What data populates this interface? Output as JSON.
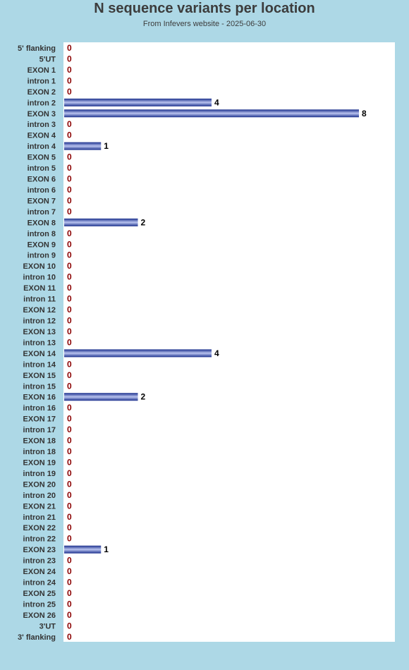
{
  "chart_data": {
    "type": "bar",
    "orientation": "horizontal",
    "title": "N sequence variants per location",
    "subtitle": "From Infevers website - 2025-06-30",
    "xlim": [
      0,
      8
    ],
    "grid": false,
    "colors": {
      "bar": "#1a2f8c",
      "bar_highlight": "#b9c3ef",
      "zero_label": "#8b0000",
      "value_label": "#000000"
    },
    "categories": [
      "5' flanking",
      "5'UT",
      "EXON 1",
      "intron 1",
      "EXON 2",
      "intron 2",
      "EXON 3",
      "intron 3",
      "EXON 4",
      "intron 4",
      "EXON 5",
      "intron 5",
      "EXON 6",
      "intron 6",
      "EXON 7",
      "intron 7",
      "EXON 8",
      "intron 8",
      "EXON 9",
      "intron 9",
      "EXON 10",
      "intron 10",
      "EXON 11",
      "intron 11",
      "EXON 12",
      "intron 12",
      "EXON 13",
      "intron 13",
      "EXON 14",
      "intron 14",
      "EXON 15",
      "intron 15",
      "EXON 16",
      "intron 16",
      "EXON 17",
      "intron 17",
      "EXON 18",
      "intron 18",
      "EXON 19",
      "intron 19",
      "EXON 20",
      "intron 20",
      "EXON 21",
      "intron 21",
      "EXON 22",
      "intron 22",
      "EXON 23",
      "intron 23",
      "EXON 24",
      "intron 24",
      "EXON 25",
      "intron 25",
      "EXON 26",
      "3'UT",
      "3' flanking"
    ],
    "values": [
      0,
      0,
      0,
      0,
      0,
      4,
      8,
      0,
      0,
      1,
      0,
      0,
      0,
      0,
      0,
      0,
      2,
      0,
      0,
      0,
      0,
      0,
      0,
      0,
      0,
      0,
      0,
      0,
      4,
      0,
      0,
      0,
      2,
      0,
      0,
      0,
      0,
      0,
      0,
      0,
      0,
      0,
      0,
      0,
      0,
      0,
      1,
      0,
      0,
      0,
      0,
      0,
      0,
      0,
      0
    ]
  }
}
